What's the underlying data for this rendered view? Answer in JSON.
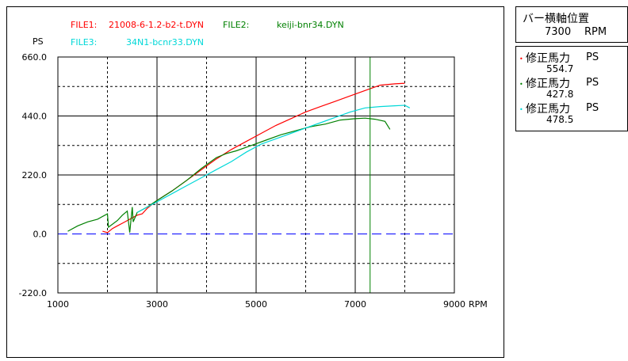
{
  "files": [
    {
      "label": "FILE1:",
      "name": "21008-6-1.2-b2-t.DYN",
      "color": "#ff0000"
    },
    {
      "label": "FILE2:",
      "name": "keiji-bnr34.DYN",
      "color": "#008000"
    },
    {
      "label": "FILE3:",
      "name": "34N1-bcnr33.DYN",
      "color": "#00d8d8"
    }
  ],
  "bar_panel": {
    "title": "バー横軸位置",
    "value": "7300",
    "unit": "RPM"
  },
  "legend_values": [
    {
      "dot": "•",
      "name": "修正馬力",
      "unit": "PS",
      "value": "554.7",
      "color": "#ff0000"
    },
    {
      "dot": "•",
      "name": "修正馬力",
      "unit": "PS",
      "value": "427.8",
      "color": "#008000"
    },
    {
      "dot": "•",
      "name": "修正馬力",
      "unit": "PS",
      "value": "478.5",
      "color": "#00d8d8"
    }
  ],
  "chart_data": {
    "type": "line",
    "ylabel": "PS",
    "xlabel": "RPM",
    "xlim": [
      1000,
      9000
    ],
    "ylim": [
      -220,
      660
    ],
    "x_ticks": [
      1000,
      3000,
      5000,
      7000,
      9000
    ],
    "x_tick_labels": [
      "1000",
      "3000",
      "5000",
      "7000",
      "9000"
    ],
    "y_ticks": [
      -220,
      0,
      220,
      440,
      660
    ],
    "y_tick_labels": [
      "-220.0",
      "0.0",
      "220.0",
      "440.0",
      "660.0"
    ],
    "grid": true,
    "bar_position_rpm": 7300,
    "bar_color": "#008000",
    "zero_line_color": "#0000ff",
    "series": [
      {
        "name": "21008-6-1.2-b2-t.DYN",
        "color": "#ff0000",
        "x": [
          1900,
          2000,
          2100,
          2200,
          2300,
          2400,
          2500,
          2600,
          2700,
          2800,
          3000,
          3300,
          3600,
          3900,
          4200,
          4500,
          4800,
          5100,
          5400,
          5700,
          6000,
          6300,
          6600,
          6900,
          7200,
          7500,
          7800,
          8000
        ],
        "y": [
          10,
          5,
          20,
          30,
          40,
          50,
          60,
          70,
          75,
          95,
          125,
          160,
          200,
          240,
          280,
          315,
          345,
          375,
          405,
          430,
          455,
          475,
          495,
          515,
          535,
          555,
          560,
          562
        ]
      },
      {
        "name": "keiji-bnr34.DYN",
        "color": "#008000",
        "x": [
          1200,
          1400,
          1600,
          1800,
          2000,
          2020,
          2200,
          2300,
          2400,
          2450,
          2500,
          2520,
          2600,
          2800,
          3000,
          3300,
          3600,
          3900,
          4200,
          4400,
          4600,
          4900,
          5200,
          5500,
          5800,
          6100,
          6400,
          6700,
          7000,
          7200,
          7400,
          7600,
          7700
        ],
        "y": [
          10,
          30,
          45,
          55,
          75,
          25,
          50,
          70,
          85,
          5,
          100,
          45,
          80,
          100,
          125,
          160,
          200,
          245,
          285,
          300,
          310,
          330,
          350,
          370,
          385,
          400,
          410,
          425,
          430,
          432,
          428,
          420,
          390
        ]
      },
      {
        "name": "34N1-bcnr33.DYN",
        "color": "#00d8d8",
        "x": [
          2600,
          2800,
          3000,
          3300,
          3600,
          3900,
          4200,
          4500,
          4800,
          5100,
          5400,
          5700,
          6000,
          6300,
          6600,
          6900,
          7200,
          7500,
          7800,
          8000,
          8100
        ],
        "y": [
          80,
          100,
          120,
          150,
          180,
          210,
          240,
          270,
          305,
          335,
          355,
          375,
          395,
          415,
          435,
          455,
          470,
          475,
          478,
          480,
          470
        ]
      }
    ]
  }
}
